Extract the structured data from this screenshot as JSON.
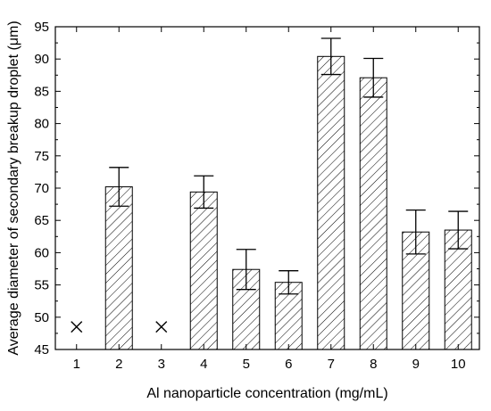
{
  "chart_data": {
    "type": "bar",
    "xlabel": "Al nanoparticle concentration (mg/mL)",
    "ylabel": "Average diameter of secondary breakup droplet (μm)",
    "ylim": [
      45,
      95
    ],
    "yticks": [
      45,
      50,
      55,
      60,
      65,
      70,
      75,
      80,
      85,
      90,
      95
    ],
    "categories": [
      "1",
      "2",
      "3",
      "4",
      "5",
      "6",
      "7",
      "8",
      "9",
      "10"
    ],
    "values": [
      null,
      70.2,
      null,
      69.4,
      57.4,
      55.4,
      90.4,
      87.1,
      63.2,
      63.5
    ],
    "error": [
      null,
      3.0,
      null,
      2.5,
      3.1,
      1.8,
      2.8,
      3.0,
      3.4,
      2.9
    ],
    "no_data_marker": {
      "categories": [
        "1",
        "3"
      ],
      "symbol": "×",
      "y": 48.5
    },
    "bar_fill": "diagonal-hatch",
    "bar_color": "#000000",
    "grid": false,
    "legend": "none"
  }
}
